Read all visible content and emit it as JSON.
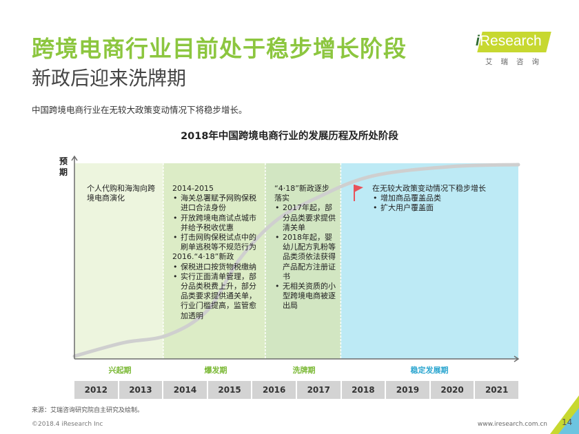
{
  "header": {
    "title": "跨境电商行业目前处于稳步增长阶段",
    "subtitle": "新政后迎来洗牌期",
    "intro": "中国跨境电商行业在无较大政策变动情况下将稳步增长。"
  },
  "logo": {
    "brand_i": "i",
    "brand_rest": "Research",
    "tagline": "艾瑞咨询"
  },
  "chart_data": {
    "type": "area",
    "title": "2018年中国跨境电商行业的发展历程及所处阶段",
    "ylabel": "预期",
    "xlabel": "",
    "categories": [
      "2012",
      "2013",
      "2014",
      "2015",
      "2016",
      "2017",
      "2018",
      "2019",
      "2020",
      "2021"
    ],
    "series": [
      {
        "name": "",
        "points": [
          [
            2011.5,
            0.0
          ],
          [
            2012.6,
            0.07
          ],
          [
            2013.6,
            0.11
          ],
          [
            2014.5,
            0.24
          ],
          [
            2015.2,
            0.5
          ],
          [
            2016.0,
            0.7
          ],
          [
            2016.9,
            0.82
          ],
          [
            2018.2,
            0.94
          ],
          [
            2020.0,
            0.99
          ],
          [
            2021.5,
            1.0
          ]
        ]
      }
    ],
    "phases": [
      {
        "label": "兴起期",
        "from": 2011.5,
        "to": 2013.5,
        "color": "#edf5de"
      },
      {
        "label": "爆发期",
        "from": 2013.5,
        "to": 2015.8,
        "color": "#dcecc6"
      },
      {
        "label": "洗牌期",
        "from": 2015.8,
        "to": 2017.5,
        "color": "#d2e6c2"
      },
      {
        "label": "稳定发展期",
        "from": 2017.5,
        "to": 2021.5,
        "color": "#bdeaf5"
      }
    ]
  },
  "phases": [
    {
      "label": "兴起期",
      "intro": "个人代购和海淘向跨境电商演化",
      "bullets": []
    },
    {
      "label": "爆发期",
      "heading1": "2014-2015",
      "bullets1": [
        "海关总署赋予网购保税进口合法身份",
        "开放跨境电商试点城市并给予税收优惠",
        "打击网购保税试点中的刷单逃税等不规范行为"
      ],
      "heading2": "2016.“4·18”新政",
      "bullets2": [
        "保税进口按货物税缴纳",
        "实行正面清单管理，部分品类税费上升，部分品类要求提供通关单，行业门槛提高，监管愈加透明"
      ]
    },
    {
      "label": "洗牌期",
      "heading1": "“4·18”新政逐步落实",
      "bullets1": [
        "2017年起，部分品类要求提供清关单",
        "2018年起，婴幼儿配方乳粉等品类须依法获得产品配方注册证书",
        "无相关资质的小型跨境电商被逐出局"
      ]
    },
    {
      "label": "稳定发展期",
      "heading1": "在无较大政策变动情况下稳步增长",
      "bullets1": [
        "增加商品覆盖品类",
        "扩大用户覆盖面"
      ]
    }
  ],
  "footer": {
    "source": "来源：艾瑞咨询研究院自主研究及绘制。",
    "copyright": "©2018.4 iResearch Inc",
    "website": "www.iresearch.com.cn",
    "page": "14"
  },
  "colors": {
    "title_green": "#8cc63f",
    "phase_label_green": "#7ab834",
    "phase_label_blue": "#2aa5cf",
    "curve": "#cfcfcf",
    "axis": "#6b6b6b",
    "flag": "#e8525a"
  }
}
